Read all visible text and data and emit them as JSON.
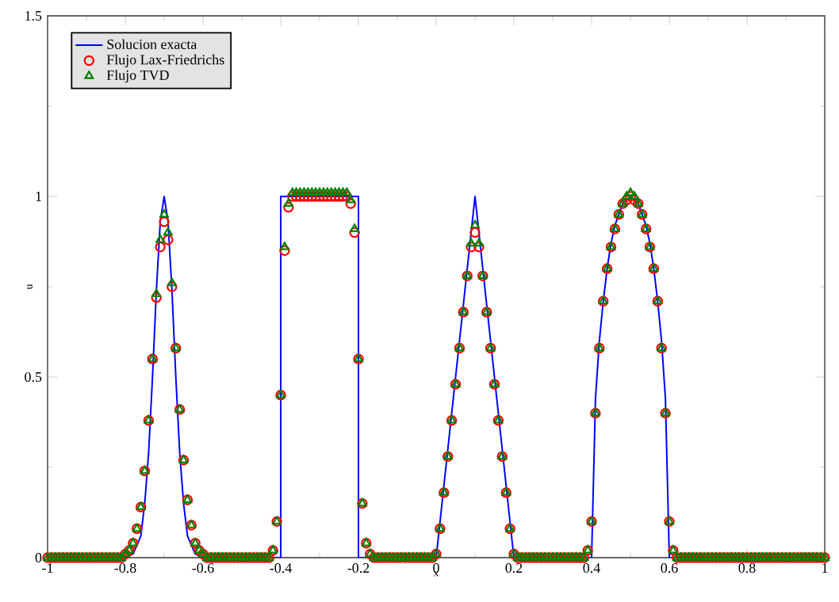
{
  "chart_data": {
    "type": "scatter",
    "xlabel": "x",
    "ylabel": "u",
    "xlim": [
      -1,
      1
    ],
    "ylim": [
      0,
      1.5
    ],
    "xticks": [
      -1,
      -0.8,
      -0.6,
      -0.4,
      -0.2,
      0,
      0.2,
      0.4,
      0.6,
      0.8,
      1
    ],
    "yticks": [
      0,
      0.5,
      1,
      1.5
    ],
    "grid": false,
    "legend": "top left",
    "x": [
      -1,
      -0.99,
      -0.98,
      -0.97,
      -0.96,
      -0.95,
      -0.94,
      -0.93,
      -0.92,
      -0.91,
      -0.9,
      -0.89,
      -0.88,
      -0.87,
      -0.86,
      -0.85,
      -0.84,
      -0.83,
      -0.82,
      -0.81,
      -0.8,
      -0.79,
      -0.78,
      -0.77,
      -0.76,
      -0.75,
      -0.74,
      -0.73,
      -0.72,
      -0.71,
      -0.7,
      -0.69,
      -0.68,
      -0.67,
      -0.66,
      -0.65,
      -0.64,
      -0.63,
      -0.62,
      -0.61,
      -0.6,
      -0.59,
      -0.58,
      -0.57,
      -0.56,
      -0.55,
      -0.54,
      -0.53,
      -0.52,
      -0.51,
      -0.5,
      -0.49,
      -0.48,
      -0.47,
      -0.46,
      -0.45,
      -0.44,
      -0.43,
      -0.42,
      -0.41,
      -0.4,
      -0.39,
      -0.38,
      -0.37,
      -0.36,
      -0.35,
      -0.34,
      -0.33,
      -0.32,
      -0.31,
      -0.3,
      -0.29,
      -0.28,
      -0.27,
      -0.26,
      -0.25,
      -0.24,
      -0.23,
      -0.22,
      -0.21,
      -0.2,
      -0.19,
      -0.18,
      -0.17,
      -0.16,
      -0.15,
      -0.14,
      -0.13,
      -0.12,
      -0.11,
      -0.1,
      -0.09,
      -0.08,
      -0.07,
      -0.06,
      -0.05,
      -0.04,
      -0.03,
      -0.02,
      -0.01,
      0,
      0.01,
      0.02,
      0.03,
      0.04,
      0.05,
      0.06,
      0.07,
      0.08,
      0.09,
      0.1,
      0.11,
      0.12,
      0.13,
      0.14,
      0.15,
      0.16,
      0.17,
      0.18,
      0.19,
      0.2,
      0.21,
      0.22,
      0.23,
      0.24,
      0.25,
      0.26,
      0.27,
      0.28,
      0.29,
      0.3,
      0.31,
      0.32,
      0.33,
      0.34,
      0.35,
      0.36,
      0.37,
      0.38,
      0.39,
      0.4,
      0.41,
      0.42,
      0.43,
      0.44,
      0.45,
      0.46,
      0.47,
      0.48,
      0.49,
      0.5,
      0.51,
      0.52,
      0.53,
      0.54,
      0.55,
      0.56,
      0.57,
      0.58,
      0.59,
      0.6,
      0.61,
      0.62,
      0.63,
      0.64,
      0.65,
      0.66,
      0.67,
      0.68,
      0.69,
      0.7,
      0.71,
      0.72,
      0.73,
      0.74,
      0.75,
      0.76,
      0.77,
      0.78,
      0.79,
      0.8,
      0.81,
      0.82,
      0.83,
      0.84,
      0.85,
      0.86,
      0.87,
      0.88,
      0.89,
      0.9,
      0.91,
      0.92,
      0.93,
      0.94,
      0.95,
      0.96,
      0.97,
      0.98,
      0.99,
      1
    ],
    "series": [
      {
        "name": "Solucion exacta",
        "type": "line",
        "marker": "none",
        "color": "#0000ff",
        "x": [
          -1,
          -0.8,
          -0.78,
          -0.76,
          -0.75,
          -0.74,
          -0.73,
          -0.72,
          -0.71,
          -0.7,
          -0.69,
          -0.68,
          -0.67,
          -0.66,
          -0.65,
          -0.64,
          -0.62,
          -0.6,
          -0.4,
          -0.4,
          -0.2,
          -0.2,
          0,
          0.1,
          0.2,
          0.4,
          0.41,
          0.42,
          0.43,
          0.44,
          0.45,
          0.46,
          0.47,
          0.48,
          0.49,
          0.5,
          0.51,
          0.52,
          0.53,
          0.54,
          0.55,
          0.56,
          0.57,
          0.58,
          0.59,
          0.6,
          1
        ],
        "values": [
          0,
          0,
          0.01,
          0.06,
          0.15,
          0.29,
          0.5,
          0.74,
          0.93,
          1,
          0.93,
          0.74,
          0.5,
          0.29,
          0.15,
          0.06,
          0.01,
          0,
          0,
          1,
          1,
          0,
          0,
          1,
          0,
          0,
          0.44,
          0.6,
          0.71,
          0.8,
          0.87,
          0.92,
          0.95,
          0.98,
          0.99,
          1,
          0.99,
          0.98,
          0.95,
          0.92,
          0.87,
          0.8,
          0.71,
          0.6,
          0.44,
          0,
          0
        ]
      },
      {
        "name": "Flujo Lax-Friedrichs",
        "marker": "circle",
        "color": "#ff0000",
        "values": [
          0,
          0,
          0,
          0,
          0,
          0,
          0,
          0,
          0,
          0,
          0,
          0,
          0,
          0,
          0,
          0,
          0,
          0,
          0,
          0,
          0.01,
          0.02,
          0.04,
          0.08,
          0.14,
          0.24,
          0.38,
          0.55,
          0.72,
          0.86,
          0.93,
          0.88,
          0.75,
          0.58,
          0.41,
          0.27,
          0.16,
          0.09,
          0.04,
          0.02,
          0.01,
          0,
          0,
          0,
          0,
          0,
          0,
          0,
          0,
          0,
          0,
          0,
          0,
          0,
          0,
          0,
          0,
          0,
          0.02,
          0.1,
          0.45,
          0.85,
          0.97,
          1,
          1,
          1,
          1,
          1,
          1,
          1,
          1,
          1,
          1,
          1,
          1,
          1,
          1,
          1,
          0.98,
          0.9,
          0.55,
          0.15,
          0.04,
          0.01,
          0,
          0,
          0,
          0,
          0,
          0,
          0,
          0,
          0,
          0,
          0,
          0,
          0,
          0,
          0,
          0,
          0.01,
          0.08,
          0.18,
          0.28,
          0.38,
          0.48,
          0.58,
          0.68,
          0.78,
          0.86,
          0.9,
          0.86,
          0.78,
          0.68,
          0.58,
          0.48,
          0.38,
          0.28,
          0.18,
          0.08,
          0.01,
          0,
          0,
          0,
          0,
          0,
          0,
          0,
          0,
          0,
          0,
          0,
          0,
          0,
          0,
          0,
          0,
          0,
          0,
          0.02,
          0.1,
          0.4,
          0.58,
          0.71,
          0.8,
          0.86,
          0.91,
          0.95,
          0.98,
          0.99,
          1,
          0.99,
          0.98,
          0.95,
          0.91,
          0.86,
          0.8,
          0.71,
          0.58,
          0.4,
          0.1,
          0.02,
          0,
          0,
          0,
          0,
          0,
          0,
          0,
          0,
          0,
          0,
          0,
          0,
          0,
          0,
          0,
          0,
          0,
          0,
          0,
          0,
          0,
          0,
          0,
          0,
          0,
          0,
          0,
          0,
          0,
          0,
          0,
          0,
          0,
          0,
          0,
          0,
          0,
          0,
          0
        ]
      },
      {
        "name": "Flujo TVD",
        "marker": "triangle",
        "color": "#008000",
        "values": [
          0,
          0,
          0,
          0,
          0,
          0,
          0,
          0,
          0,
          0,
          0,
          0,
          0,
          0,
          0,
          0,
          0,
          0,
          0,
          0,
          0.01,
          0.02,
          0.04,
          0.08,
          0.14,
          0.24,
          0.38,
          0.55,
          0.73,
          0.88,
          0.95,
          0.9,
          0.76,
          0.58,
          0.41,
          0.27,
          0.16,
          0.09,
          0.04,
          0.02,
          0.01,
          0,
          0,
          0,
          0,
          0,
          0,
          0,
          0,
          0,
          0,
          0,
          0,
          0,
          0,
          0,
          0,
          0,
          0.02,
          0.1,
          0.45,
          0.86,
          0.98,
          1.01,
          1.01,
          1.01,
          1.01,
          1.01,
          1.01,
          1.01,
          1.01,
          1.01,
          1.01,
          1.01,
          1.01,
          1.01,
          1.01,
          1.01,
          0.99,
          0.91,
          0.55,
          0.15,
          0.04,
          0.01,
          0,
          0,
          0,
          0,
          0,
          0,
          0,
          0,
          0,
          0,
          0,
          0,
          0,
          0,
          0,
          0,
          0.01,
          0.08,
          0.18,
          0.28,
          0.38,
          0.48,
          0.58,
          0.68,
          0.78,
          0.87,
          0.92,
          0.87,
          0.78,
          0.68,
          0.58,
          0.48,
          0.38,
          0.28,
          0.18,
          0.08,
          0.01,
          0,
          0,
          0,
          0,
          0,
          0,
          0,
          0,
          0,
          0,
          0,
          0,
          0,
          0,
          0,
          0,
          0,
          0,
          0.02,
          0.1,
          0.4,
          0.58,
          0.71,
          0.8,
          0.86,
          0.91,
          0.95,
          0.98,
          1,
          1.01,
          1,
          0.98,
          0.95,
          0.91,
          0.86,
          0.8,
          0.71,
          0.58,
          0.4,
          0.1,
          0.02,
          0,
          0,
          0,
          0,
          0,
          0,
          0,
          0,
          0,
          0,
          0,
          0,
          0,
          0,
          0,
          0,
          0,
          0,
          0,
          0,
          0,
          0,
          0,
          0,
          0,
          0,
          0,
          0,
          0,
          0,
          0,
          0,
          0,
          0,
          0,
          0,
          0,
          0,
          0
        ]
      }
    ]
  }
}
